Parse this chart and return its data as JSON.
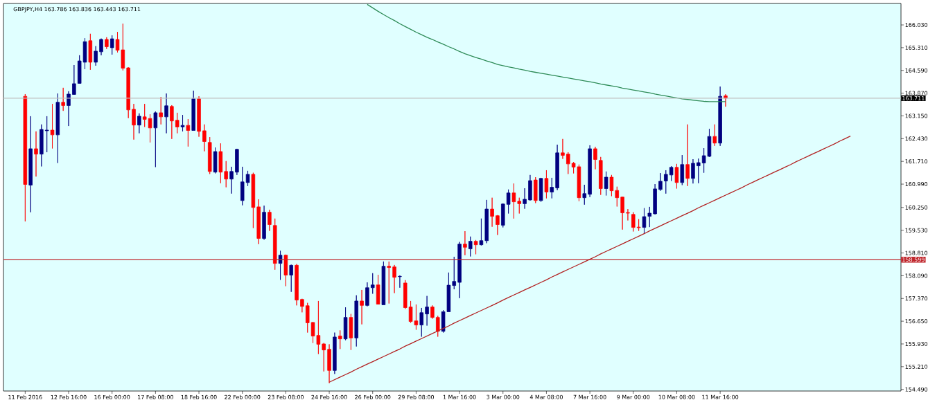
{
  "chart_data": {
    "type": "candlestick",
    "title": "GBPJPY,H4 163.786 163.836 163.443 163.711",
    "categories": [
      "11 Feb 2016",
      null,
      null,
      null,
      null,
      null,
      null,
      null,
      "12 Feb 16:00",
      null,
      null,
      null,
      null,
      null,
      null,
      null,
      "16 Feb 00:00",
      null,
      null,
      null,
      null,
      null,
      null,
      null,
      "17 Feb 08:00",
      null,
      null,
      null,
      null,
      null,
      null,
      null,
      "18 Feb 16:00",
      null,
      null,
      null,
      null,
      null,
      null,
      null,
      "22 Feb 00:00",
      null,
      null,
      null,
      null,
      null,
      null,
      null,
      "23 Feb 08:00",
      null,
      null,
      null,
      null,
      null,
      null,
      null,
      "24 Feb 16:00",
      null,
      null,
      null,
      null,
      null,
      null,
      null,
      "26 Feb 00:00",
      null,
      null,
      null,
      null,
      null,
      null,
      null,
      "29 Feb 08:00",
      null,
      null,
      null,
      null,
      null,
      null,
      null,
      "1 Mar 16:00",
      null,
      null,
      null,
      null,
      null,
      null,
      null,
      "3 Mar 00:00",
      null,
      null,
      null,
      null,
      null,
      null,
      null,
      "4 Mar 08:00",
      null,
      null,
      null,
      null,
      null,
      null,
      null,
      "7 Mar 16:00",
      null,
      null,
      null,
      null,
      null,
      null,
      null,
      "9 Mar 00:00",
      null,
      null,
      null,
      null,
      null,
      null,
      null,
      "10 Mar 08:00",
      null,
      null,
      null,
      null,
      null,
      null,
      null,
      "11 Mar 16:00",
      null,
      null,
      null,
      null,
      null,
      null,
      null,
      null,
      null,
      null,
      null,
      null,
      null,
      null,
      null,
      null,
      null,
      null,
      null,
      null,
      null,
      null,
      null,
      null,
      null,
      null,
      null,
      null,
      null,
      null,
      null,
      null,
      null
    ],
    "ohlc": [
      [
        163.77,
        163.84,
        159.81,
        160.98
      ],
      [
        160.96,
        163.14,
        160.1,
        162.11
      ],
      [
        162.11,
        162.66,
        161.23,
        161.94
      ],
      [
        161.94,
        162.88,
        161.55,
        162.72
      ],
      [
        162.68,
        163.14,
        162.0,
        162.7
      ],
      [
        162.7,
        163.53,
        162.12,
        162.55
      ],
      [
        162.55,
        163.86,
        161.66,
        163.58
      ],
      [
        163.58,
        164.04,
        163.31,
        163.48
      ],
      [
        163.48,
        163.93,
        162.83,
        163.84
      ],
      [
        163.83,
        164.76,
        163.82,
        164.17
      ],
      [
        164.18,
        165.07,
        164.17,
        164.89
      ],
      [
        164.85,
        165.61,
        164.63,
        165.5
      ],
      [
        165.53,
        165.75,
        164.61,
        164.85
      ],
      [
        164.85,
        165.36,
        164.74,
        165.2
      ],
      [
        165.18,
        165.6,
        165.07,
        165.57
      ],
      [
        165.57,
        165.64,
        165.27,
        165.34
      ],
      [
        165.31,
        165.7,
        165.09,
        165.59
      ],
      [
        165.57,
        165.81,
        165.16,
        165.23
      ],
      [
        165.24,
        166.07,
        164.59,
        164.66
      ],
      [
        164.67,
        164.69,
        163.08,
        163.34
      ],
      [
        163.36,
        163.53,
        162.4,
        162.86
      ],
      [
        162.86,
        163.23,
        162.6,
        163.14
      ],
      [
        163.12,
        163.53,
        162.8,
        163.04
      ],
      [
        163.07,
        163.2,
        162.31,
        162.77
      ],
      [
        162.77,
        163.29,
        161.53,
        163.25
      ],
      [
        163.25,
        163.75,
        162.88,
        163.12
      ],
      [
        163.12,
        163.86,
        162.6,
        163.47
      ],
      [
        163.45,
        163.49,
        162.42,
        162.99
      ],
      [
        163.01,
        163.25,
        162.6,
        162.8
      ],
      [
        162.8,
        163.18,
        162.66,
        162.85
      ],
      [
        162.85,
        163.05,
        162.18,
        162.69
      ],
      [
        162.69,
        163.95,
        162.69,
        163.69
      ],
      [
        163.69,
        163.77,
        162.49,
        162.66
      ],
      [
        162.68,
        162.88,
        162.03,
        162.34
      ],
      [
        162.31,
        162.48,
        161.31,
        161.39
      ],
      [
        161.37,
        162.15,
        161.33,
        162.02
      ],
      [
        162.02,
        162.28,
        161.02,
        161.37
      ],
      [
        161.39,
        161.72,
        160.89,
        161.15
      ],
      [
        161.15,
        161.54,
        160.69,
        161.39
      ],
      [
        161.37,
        162.11,
        161.28,
        162.09
      ],
      [
        160.47,
        161.54,
        160.32,
        161.06
      ],
      [
        161.04,
        161.41,
        160.93,
        161.3
      ],
      [
        161.3,
        161.35,
        159.6,
        160.25
      ],
      [
        160.27,
        160.51,
        159.09,
        159.27
      ],
      [
        159.27,
        160.31,
        159.23,
        160.1
      ],
      [
        160.1,
        160.18,
        159.51,
        159.71
      ],
      [
        159.68,
        159.9,
        158.28,
        158.48
      ],
      [
        158.48,
        158.88,
        157.96,
        158.74
      ],
      [
        158.74,
        158.76,
        157.76,
        158.11
      ],
      [
        158.11,
        158.44,
        157.58,
        158.42
      ],
      [
        158.42,
        158.46,
        157.15,
        157.32
      ],
      [
        157.34,
        157.36,
        156.93,
        157.12
      ],
      [
        157.14,
        157.23,
        156.29,
        156.6
      ],
      [
        156.61,
        156.63,
        155.96,
        156.18
      ],
      [
        156.2,
        157.29,
        155.61,
        155.92
      ],
      [
        155.93,
        155.96,
        155.06,
        155.74
      ],
      [
        155.76,
        155.92,
        154.69,
        155.09
      ],
      [
        155.09,
        156.29,
        154.98,
        156.15
      ],
      [
        156.18,
        156.36,
        155.77,
        156.09
      ],
      [
        156.09,
        157.09,
        156.05,
        156.77
      ],
      [
        156.77,
        156.88,
        155.74,
        156.12
      ],
      [
        156.12,
        157.47,
        155.85,
        157.29
      ],
      [
        157.29,
        157.64,
        156.55,
        157.15
      ],
      [
        157.15,
        157.88,
        157.12,
        157.71
      ],
      [
        157.71,
        158.17,
        157.52,
        157.8
      ],
      [
        157.8,
        158.12,
        157.18,
        157.19
      ],
      [
        157.17,
        158.54,
        157.17,
        158.39
      ],
      [
        158.39,
        158.54,
        157.21,
        158.35
      ],
      [
        158.37,
        158.43,
        157.54,
        158.04
      ],
      [
        158.06,
        158.1,
        157.71,
        158.07
      ],
      [
        157.86,
        157.95,
        157.04,
        157.08
      ],
      [
        157.1,
        157.29,
        156.6,
        156.64
      ],
      [
        156.66,
        157.18,
        156.38,
        156.53
      ],
      [
        156.53,
        157.07,
        156.16,
        156.92
      ],
      [
        156.88,
        157.45,
        156.51,
        157.1
      ],
      [
        157.1,
        157.15,
        156.73,
        156.77
      ],
      [
        156.77,
        156.82,
        156.16,
        156.33
      ],
      [
        156.33,
        157.0,
        156.29,
        156.95
      ],
      [
        156.95,
        158.19,
        156.95,
        157.79
      ],
      [
        157.78,
        158.69,
        157.66,
        157.91
      ],
      [
        157.88,
        159.16,
        157.38,
        159.09
      ],
      [
        159.09,
        159.5,
        158.74,
        158.99
      ],
      [
        158.94,
        159.33,
        158.7,
        159.18
      ],
      [
        159.18,
        159.22,
        158.77,
        159.07
      ],
      [
        159.07,
        159.9,
        159.05,
        159.2
      ],
      [
        159.2,
        160.49,
        159.12,
        160.2
      ],
      [
        160.2,
        160.56,
        159.64,
        159.97
      ],
      [
        159.99,
        160.01,
        159.38,
        159.71
      ],
      [
        159.69,
        160.38,
        159.62,
        160.36
      ],
      [
        160.35,
        160.82,
        160.06,
        160.71
      ],
      [
        160.71,
        161.01,
        159.9,
        160.43
      ],
      [
        160.45,
        160.56,
        160.06,
        160.37
      ],
      [
        160.37,
        160.86,
        160.21,
        160.51
      ],
      [
        160.49,
        161.28,
        160.47,
        161.1
      ],
      [
        161.12,
        161.21,
        160.39,
        160.47
      ],
      [
        160.47,
        161.19,
        160.43,
        161.17
      ],
      [
        161.17,
        161.43,
        160.54,
        160.74
      ],
      [
        160.74,
        161.19,
        160.54,
        160.89
      ],
      [
        160.87,
        162.24,
        160.8,
        161.98
      ],
      [
        161.98,
        162.42,
        161.79,
        161.9
      ],
      [
        161.94,
        162.0,
        161.31,
        161.63
      ],
      [
        161.65,
        161.69,
        161.33,
        161.53
      ],
      [
        161.54,
        161.61,
        160.45,
        160.56
      ],
      [
        160.56,
        160.97,
        160.34,
        160.69
      ],
      [
        160.67,
        162.22,
        160.58,
        162.11
      ],
      [
        162.11,
        162.17,
        161.46,
        161.77
      ],
      [
        161.74,
        161.85,
        160.65,
        160.85
      ],
      [
        160.85,
        161.39,
        160.63,
        161.21
      ],
      [
        161.21,
        161.28,
        160.61,
        160.78
      ],
      [
        160.79,
        160.91,
        160.28,
        160.56
      ],
      [
        160.58,
        160.59,
        159.55,
        160.08
      ],
      [
        160.09,
        160.2,
        159.84,
        160.07
      ],
      [
        160.03,
        160.1,
        159.49,
        159.62
      ],
      [
        159.63,
        159.88,
        159.51,
        159.61
      ],
      [
        159.62,
        160.23,
        159.42,
        159.96
      ],
      [
        159.97,
        160.27,
        159.63,
        160.07
      ],
      [
        160.05,
        160.99,
        160.03,
        160.84
      ],
      [
        160.82,
        161.34,
        160.78,
        161.08
      ],
      [
        161.09,
        161.43,
        160.69,
        161.3
      ],
      [
        161.28,
        161.56,
        161.09,
        161.52
      ],
      [
        161.52,
        161.63,
        160.85,
        161.04
      ],
      [
        161.04,
        161.91,
        160.96,
        161.61
      ],
      [
        161.61,
        162.88,
        160.93,
        161.17
      ],
      [
        161.17,
        161.78,
        161.01,
        161.65
      ],
      [
        161.57,
        161.8,
        161.02,
        161.67
      ],
      [
        161.66,
        162.13,
        161.35,
        161.89
      ],
      [
        161.87,
        162.74,
        161.85,
        162.5
      ],
      [
        162.5,
        162.88,
        162.2,
        162.29
      ],
      [
        162.29,
        164.08,
        162.2,
        163.77
      ],
      [
        163.786,
        163.836,
        163.443,
        163.711
      ],
      null,
      null,
      null,
      null,
      null,
      null,
      null,
      null,
      null,
      null,
      null,
      null,
      null,
      null,
      null,
      null,
      null,
      null,
      null,
      null,
      null,
      null,
      null,
      null,
      null,
      null,
      null,
      null,
      null,
      null,
      null,
      null
    ],
    "colors": [
      "#ff0000",
      "#000080",
      "#ff0000",
      "#000080",
      "#000080",
      "#ff0000",
      "#000080",
      "#ff0000",
      "#000080",
      "#000080",
      "#000080",
      "#000080",
      "#ff0000",
      "#000080",
      "#000080",
      "#ff0000",
      "#000080",
      "#ff0000",
      "#ff0000",
      "#ff0000",
      "#ff0000",
      "#000080",
      "#ff0000",
      "#ff0000",
      "#000080",
      "#ff0000",
      "#000080",
      "#ff0000",
      "#ff0000",
      "#000080",
      "#ff0000",
      "#000080",
      "#ff0000",
      "#ff0000",
      "#ff0000",
      "#000080",
      "#ff0000",
      "#ff0000",
      "#000080",
      "#000080",
      "#000080",
      "#000080",
      "#ff0000",
      "#ff0000",
      "#000080",
      "#ff0000",
      "#ff0000",
      "#000080",
      "#ff0000",
      "#000080",
      "#ff0000",
      "#ff0000",
      "#ff0000",
      "#ff0000",
      "#ff0000",
      "#ff0000",
      "#ff0000",
      "#000080",
      "#ff0000",
      "#000080",
      "#ff0000",
      "#000080",
      "#ff0000",
      "#000080",
      "#000080",
      "#ff0000",
      "#000080",
      "#ff0000",
      "#ff0000",
      "#000080",
      "#ff0000",
      "#ff0000",
      "#ff0000",
      "#000080",
      "#000080",
      "#ff0000",
      "#ff0000",
      "#000080",
      "#000080",
      "#000080",
      "#000080",
      "#ff0000",
      "#000080",
      "#ff0000",
      "#000080",
      "#000080",
      "#ff0000",
      "#ff0000",
      "#000080",
      "#000080",
      "#ff0000",
      "#ff0000",
      "#000080",
      "#000080",
      "#ff0000",
      "#000080",
      "#ff0000",
      "#000080",
      "#000080",
      "#ff0000",
      "#ff0000",
      "#ff0000",
      "#ff0000",
      "#000080",
      "#000080",
      "#ff0000",
      "#ff0000",
      "#000080",
      "#ff0000",
      "#ff0000",
      "#ff0000",
      "#ff0000",
      "#ff0000",
      "#ff0000",
      "#000080",
      "#000080",
      "#000080",
      "#000080",
      "#000080",
      "#000080",
      "#ff0000",
      "#000080",
      "#ff0000",
      "#000080",
      "#000080",
      "#000080",
      "#000080",
      "#ff0000",
      "#000080",
      "#ff0000",
      null,
      null,
      null,
      null,
      null,
      null,
      null,
      null,
      null,
      null,
      null,
      null,
      null,
      null,
      null,
      null,
      null,
      null,
      null,
      null,
      null,
      null,
      null,
      null,
      null,
      null,
      null,
      null,
      null,
      null,
      null,
      null
    ],
    "series": [
      {
        "type": "line",
        "color": "#2e8b57",
        "values": [
          null,
          null,
          null,
          null,
          null,
          null,
          null,
          null,
          null,
          null,
          null,
          null,
          null,
          null,
          null,
          null,
          null,
          null,
          null,
          null,
          null,
          null,
          null,
          null,
          null,
          null,
          null,
          null,
          null,
          null,
          null,
          null,
          null,
          null,
          null,
          null,
          null,
          null,
          null,
          null,
          null,
          null,
          null,
          null,
          null,
          null,
          null,
          null,
          null,
          null,
          null,
          null,
          null,
          null,
          null,
          null,
          null,
          null,
          null,
          null,
          null,
          null,
          null,
          166.68,
          166.57,
          166.46,
          166.36,
          166.26,
          166.17,
          166.07,
          165.98,
          165.89,
          165.8,
          165.72,
          165.64,
          165.57,
          165.49,
          165.42,
          165.34,
          165.27,
          165.19,
          165.12,
          165.06,
          165.0,
          164.95,
          164.89,
          164.84,
          164.78,
          164.74,
          164.7,
          164.67,
          164.63,
          164.6,
          164.56,
          164.53,
          164.5,
          164.47,
          164.44,
          164.41,
          164.38,
          164.35,
          164.32,
          164.29,
          164.26,
          164.23,
          164.2,
          164.16,
          164.13,
          164.1,
          164.07,
          164.03,
          164.0,
          163.97,
          163.94,
          163.91,
          163.88,
          163.84,
          163.81,
          163.78,
          163.75,
          163.72,
          163.69,
          163.67,
          163.65,
          163.63,
          163.61,
          163.6,
          163.6,
          163.6,
          163.6,
          null,
          null,
          null,
          null,
          null,
          null,
          null,
          null,
          null,
          null,
          null,
          null,
          null,
          null,
          null,
          null,
          null,
          null,
          null,
          null,
          null,
          null,
          null,
          null,
          null,
          null,
          null,
          null,
          null,
          null,
          null,
          null
        ]
      },
      {
        "type": "line",
        "color": "#b22222",
        "values": [
          null,
          null,
          null,
          null,
          null,
          null,
          null,
          null,
          null,
          null,
          null,
          null,
          null,
          null,
          null,
          null,
          null,
          null,
          null,
          null,
          null,
          null,
          null,
          null,
          null,
          null,
          null,
          null,
          null,
          null,
          null,
          null,
          null,
          null,
          null,
          null,
          null,
          null,
          null,
          null,
          null,
          null,
          null,
          null,
          null,
          null,
          null,
          null,
          null,
          null,
          null,
          null,
          null,
          null,
          null,
          null,
          154.72,
          154.8,
          154.88,
          154.96,
          155.04,
          155.13,
          155.21,
          155.29,
          155.37,
          155.45,
          155.53,
          155.61,
          155.69,
          155.77,
          155.86,
          155.94,
          156.02,
          156.1,
          156.18,
          156.26,
          156.34,
          156.42,
          156.5,
          156.59,
          156.67,
          156.75,
          156.83,
          156.91,
          156.99,
          157.07,
          157.15,
          157.23,
          157.32,
          157.4,
          157.48,
          157.56,
          157.64,
          157.72,
          157.8,
          157.88,
          157.96,
          158.05,
          158.13,
          158.21,
          158.29,
          158.37,
          158.45,
          158.53,
          158.61,
          158.69,
          158.78,
          158.86,
          158.94,
          159.02,
          159.1,
          159.18,
          159.26,
          159.34,
          159.42,
          159.51,
          159.59,
          159.67,
          159.75,
          159.83,
          159.91,
          159.99,
          160.07,
          160.15,
          160.24,
          160.32,
          160.4,
          160.48,
          160.56,
          160.64,
          160.72,
          160.8,
          160.88,
          160.97,
          161.05,
          161.13,
          161.21,
          161.29,
          161.37,
          161.45,
          161.53,
          161.61,
          161.7,
          161.78,
          161.86,
          161.94,
          162.02,
          162.1,
          162.18,
          162.26,
          162.35,
          162.43,
          162.51,
          null,
          null,
          null,
          null,
          null,
          null,
          null,
          null,
          null
        ]
      }
    ],
    "ylim": [
      154.44,
      166.71
    ],
    "yticks": [
      {
        "value": 166.03,
        "label": "166.030"
      },
      {
        "value": 165.31,
        "label": "165.310"
      },
      {
        "value": 164.59,
        "label": "164.590"
      },
      {
        "value": 163.87,
        "label": "163.870"
      },
      {
        "value": 163.15,
        "label": "163.150"
      },
      {
        "value": 162.43,
        "label": "162.430"
      },
      {
        "value": 161.71,
        "label": "161.710"
      },
      {
        "value": 160.99,
        "label": "160.990"
      },
      {
        "value": 160.25,
        "label": "160.250"
      },
      {
        "value": 159.53,
        "label": "159.530"
      },
      {
        "value": 158.81,
        "label": "158.810"
      },
      {
        "value": 158.09,
        "label": "158.090"
      },
      {
        "value": 157.37,
        "label": "157.370"
      },
      {
        "value": 156.65,
        "label": "156.650"
      },
      {
        "value": 155.93,
        "label": "155.930"
      },
      {
        "value": 155.21,
        "label": "155.210"
      },
      {
        "value": 154.49,
        "label": "154.490"
      }
    ],
    "ref_lines": [
      {
        "axis": "y",
        "value": 158.599,
        "label": "158.599",
        "color": "#c0272d"
      },
      {
        "axis": "y",
        "value": 163.711,
        "label": "163.711",
        "color": "#c0c0c0"
      }
    ]
  }
}
